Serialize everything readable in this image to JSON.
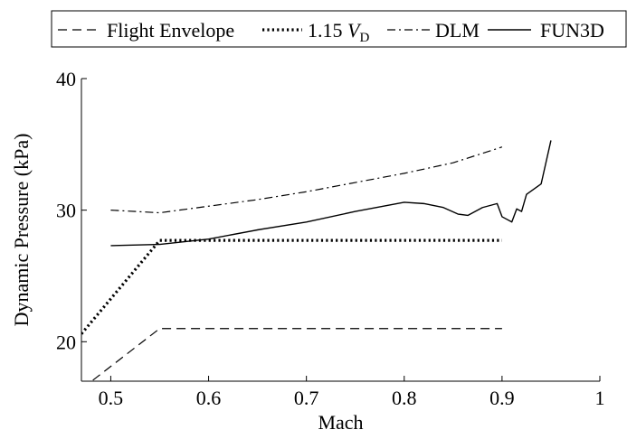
{
  "chart_data": {
    "type": "line",
    "title": "",
    "xlabel": "Mach",
    "ylabel": "Dynamic Pressure (kPa)",
    "xlim": [
      0.47,
      1.0
    ],
    "ylim": [
      17.0,
      40.0
    ],
    "x_ticks": [
      0.5,
      0.6,
      0.7,
      0.8,
      0.9,
      1
    ],
    "x_tick_labels": [
      "0.5",
      "0.6",
      "0.7",
      "0.8",
      "0.9",
      "1"
    ],
    "y_ticks": [
      20,
      30,
      40
    ],
    "y_tick_labels": [
      "20",
      "30",
      "40"
    ],
    "grid": false,
    "legend_position": "top",
    "series": [
      {
        "name": "Flight Envelope",
        "style": "dashed",
        "x": [
          0.47,
          0.55,
          0.9
        ],
        "y": [
          16.4,
          21.0,
          21.0
        ]
      },
      {
        "name": "1.15 V_D",
        "name_parts": [
          "1.15 ",
          "V",
          "D"
        ],
        "style": "dotted",
        "x": [
          0.47,
          0.55,
          0.9
        ],
        "y": [
          20.6,
          27.7,
          27.7
        ]
      },
      {
        "name": "DLM",
        "style": "dashdot",
        "x": [
          0.5,
          0.55,
          0.6,
          0.65,
          0.7,
          0.75,
          0.8,
          0.85,
          0.9
        ],
        "y": [
          30.0,
          29.8,
          30.3,
          30.8,
          31.4,
          32.1,
          32.8,
          33.6,
          34.8
        ]
      },
      {
        "name": "FUN3D",
        "style": "solid",
        "x": [
          0.5,
          0.55,
          0.6,
          0.65,
          0.7,
          0.75,
          0.8,
          0.82,
          0.84,
          0.855,
          0.865,
          0.88,
          0.895,
          0.9,
          0.91,
          0.915,
          0.92,
          0.925,
          0.94,
          0.95
        ],
        "y": [
          27.3,
          27.4,
          27.8,
          28.5,
          29.1,
          29.9,
          30.6,
          30.5,
          30.2,
          29.7,
          29.6,
          30.2,
          30.5,
          29.5,
          29.1,
          30.1,
          29.9,
          31.2,
          32.0,
          35.3
        ]
      }
    ]
  }
}
